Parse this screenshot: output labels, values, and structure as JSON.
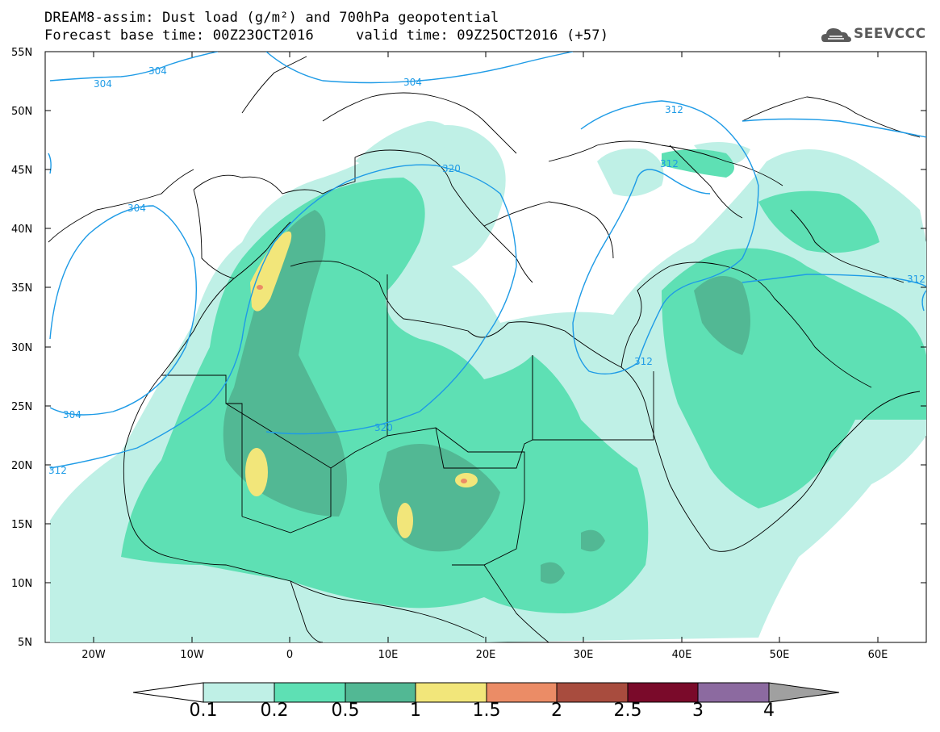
{
  "header": {
    "title_line1": "DREAM8-assim: Dust load (g/m²) and 700hPa geopotential",
    "title_line2": "Forecast base time: 00Z23OCT2016     valid time: 09Z25OCT2016 (+57)",
    "logo_text": "SEEVCCC"
  },
  "map": {
    "lat_labels": [
      "55N",
      "50N",
      "45N",
      "40N",
      "35N",
      "30N",
      "25N",
      "20N",
      "15N",
      "10N",
      "5N"
    ],
    "lon_labels": [
      "20W",
      "10W",
      "0",
      "10E",
      "20E",
      "30E",
      "40E",
      "50E",
      "60E"
    ],
    "contour_labels": [
      "304",
      "304",
      "304",
      "304",
      "304",
      "312",
      "312",
      "312",
      "320",
      "320",
      "312",
      "312"
    ],
    "colors": {
      "contour_line": "#1e9be6",
      "border_line": "#000000",
      "ocean": "#ffffff"
    }
  },
  "colorbar": {
    "labels": [
      "0.1",
      "0.2",
      "0.5",
      "1",
      "1.5",
      "2",
      "2.5",
      "3",
      "4"
    ],
    "colors": [
      "#bff0e6",
      "#5ee0b4",
      "#52b894",
      "#f2e67a",
      "#eb8c66",
      "#a84c3e",
      "#7a0a2a",
      "#8c6aa0",
      "#a0a0a0"
    ]
  }
}
